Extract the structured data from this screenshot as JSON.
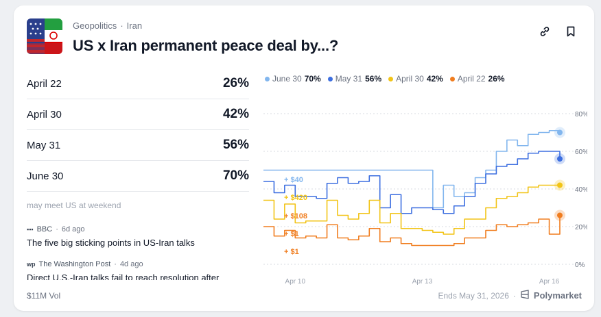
{
  "header": {
    "category": "Geopolitics",
    "subcategory": "Iran",
    "title": "US x Iran permanent peace deal by...?"
  },
  "outcomes": [
    {
      "label": "April 22",
      "pct": "26%"
    },
    {
      "label": "April 30",
      "pct": "42%"
    },
    {
      "label": "May 31",
      "pct": "56%"
    },
    {
      "label": "June 30",
      "pct": "70%"
    }
  ],
  "news": {
    "faded_text": "may meet US at weekend",
    "items": [
      {
        "source": "BBC",
        "age": "6d ago",
        "headline": "The five big sticking points in US-Iran talks"
      },
      {
        "source": "The Washington Post",
        "age": "4d ago",
        "headline": "Direct U.S.-Iran talks fail to reach resolution after lengthy"
      }
    ]
  },
  "legend": [
    {
      "name": "June 30",
      "value": "70%",
      "color": "#82b6ee"
    },
    {
      "name": "May 31",
      "value": "56%",
      "color": "#3d6fe0"
    },
    {
      "name": "April 30",
      "value": "42%",
      "color": "#f2c417"
    },
    {
      "name": "April 22",
      "value": "26%",
      "color": "#f07d1f"
    }
  ],
  "trade_labels": [
    "+ $40",
    "+ $420",
    "+ $108",
    "+ $1",
    "+ $1"
  ],
  "footer": {
    "volume": "$11M Vol",
    "ends": "Ends May 31, 2026",
    "brand": "Polymarket"
  },
  "icons": [
    "link-icon",
    "bookmark-icon",
    "polymarket-logo-icon"
  ],
  "chart_data": {
    "type": "line",
    "x_ticks": [
      "Apr 10",
      "Apr 13",
      "Apr 16"
    ],
    "y_ticks": [
      "80%",
      "60%",
      "40%",
      "20%",
      "0%"
    ],
    "ylim": [
      0,
      80
    ],
    "grid": true,
    "legend_position": "top",
    "x_index": [
      0,
      0.5,
      1,
      1.5,
      2,
      2.5,
      3,
      3.5,
      4,
      4.5,
      5,
      5.5,
      6,
      6.5,
      7,
      7.5,
      8,
      8.5,
      9,
      9.5,
      10,
      10.5,
      11,
      11.5,
      12,
      12.5,
      13,
      13.5,
      14
    ],
    "series": [
      {
        "name": "June 30",
        "color": "#82b6ee",
        "values": [
          50,
          50,
          50,
          50,
          50,
          50,
          50,
          50,
          50,
          50,
          50,
          50,
          50,
          50,
          50,
          50,
          30,
          42,
          36,
          38,
          46,
          50,
          60,
          66,
          63,
          69,
          70,
          71,
          70
        ]
      },
      {
        "name": "May 31",
        "color": "#3d6fe0",
        "values": [
          44,
          38,
          42,
          36,
          36,
          35,
          43,
          46,
          43,
          44,
          47,
          30,
          37,
          27,
          30,
          30,
          29,
          27,
          31,
          36,
          43,
          48,
          52,
          53,
          56,
          59,
          60,
          60,
          56
        ]
      },
      {
        "name": "April 30",
        "color": "#f2c417",
        "values": [
          34,
          24,
          32,
          22,
          23,
          23,
          34,
          26,
          24,
          27,
          34,
          22,
          27,
          19,
          19,
          18,
          17,
          16,
          19,
          24,
          24,
          30,
          35,
          36,
          38,
          41,
          42,
          42,
          42
        ]
      },
      {
        "name": "April 22",
        "color": "#f07d1f",
        "values": [
          20,
          15,
          18,
          14,
          15,
          14,
          21,
          14,
          13,
          15,
          19,
          12,
          14,
          11,
          10,
          10,
          10,
          10,
          11,
          14,
          14,
          18,
          21,
          20,
          21,
          22,
          24,
          16,
          26
        ]
      }
    ]
  }
}
